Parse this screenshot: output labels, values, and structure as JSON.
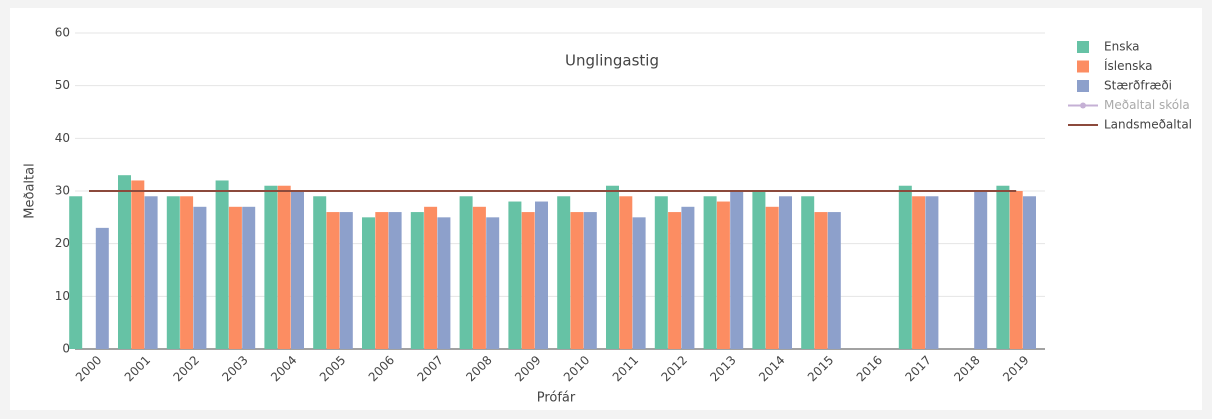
{
  "chart_data": {
    "type": "bar",
    "title": "Unglingastig",
    "x_label": "Prófár",
    "y_label": "Meðaltal",
    "categories": [
      "2000",
      "2001",
      "2002",
      "2003",
      "2004",
      "2005",
      "2006",
      "2007",
      "2008",
      "2009",
      "2010",
      "2011",
      "2012",
      "2013",
      "2014",
      "2015",
      "2016",
      "2017",
      "2018",
      "2019"
    ],
    "series": [
      {
        "name": "Enska",
        "color": "#66c2a5",
        "values": [
          29,
          33,
          29,
          32,
          31,
          29,
          25,
          26,
          29,
          28,
          29,
          31,
          29,
          29,
          30,
          29,
          null,
          31,
          null,
          31
        ]
      },
      {
        "name": "Íslenska",
        "color": "#fc8d62",
        "values": [
          null,
          32,
          29,
          27,
          31,
          26,
          26,
          27,
          27,
          26,
          26,
          29,
          26,
          28,
          27,
          26,
          null,
          29,
          null,
          30
        ]
      },
      {
        "name": "Stærðfræði",
        "color": "#8da0cb",
        "values": [
          23,
          29,
          27,
          27,
          30,
          26,
          26,
          25,
          25,
          28,
          26,
          25,
          27,
          30,
          29,
          26,
          null,
          29,
          30,
          29
        ]
      },
      {
        "name": "Meðaltal skóla",
        "color": "#c5b0d5",
        "type": "line",
        "visible": "legendonly"
      },
      {
        "name": "Landsmeðaltal",
        "color": "#8c4a3c",
        "type": "line",
        "values": [
          30,
          30,
          30,
          30,
          30,
          30,
          30,
          30,
          30,
          30,
          30,
          30,
          30,
          30,
          30,
          30,
          30,
          30,
          30,
          30
        ]
      }
    ],
    "ylim": [
      0,
      60
    ],
    "yticks": [
      0,
      10,
      20,
      30,
      40,
      50,
      60
    ],
    "grid": true,
    "legend": "right"
  }
}
